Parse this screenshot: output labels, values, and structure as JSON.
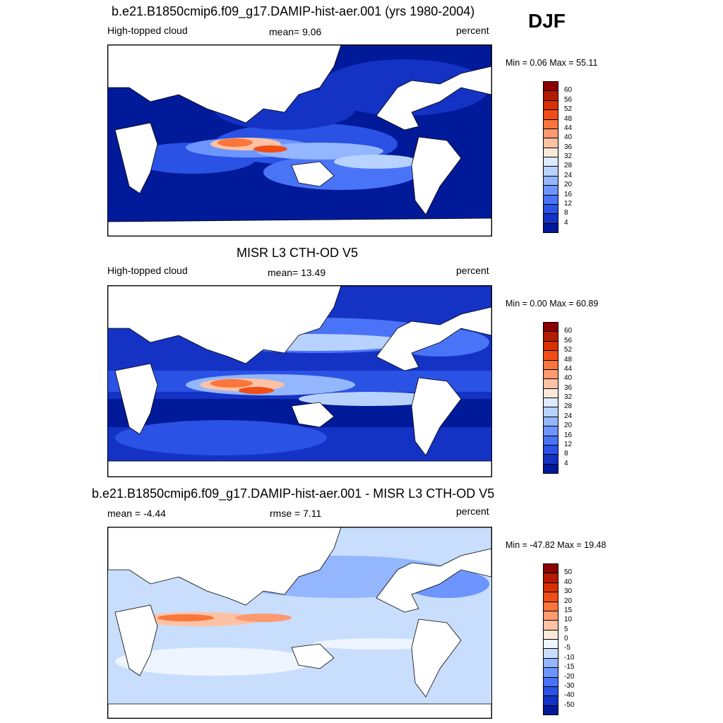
{
  "season": "DJF",
  "panels": [
    {
      "title": "b.e21.B1850cmip6.f09_g17.DAMIP-hist-aer.001 (yrs 1980-2004)",
      "left_label": "High-topped cloud",
      "center_label": "mean=   9.06",
      "right_label": "percent",
      "minmax": "Min =   0.06 Max =  55.11",
      "colorbar": {
        "labels": [
          "60",
          "56",
          "52",
          "48",
          "44",
          "40",
          "36",
          "32",
          "28",
          "24",
          "20",
          "16",
          "12",
          "8",
          "4"
        ],
        "colors": [
          "#8b0000",
          "#b31a00",
          "#d83000",
          "#f04e16",
          "#f9763c",
          "#fd9a70",
          "#fdc2a4",
          "#fde9d8",
          "#dceaff",
          "#b8d2ff",
          "#93b6ff",
          "#6d95ff",
          "#4a74f7",
          "#2a52e4",
          "#1432c4",
          "#001a99"
        ]
      }
    },
    {
      "title": "MISR L3 CTH-OD V5",
      "left_label": "High-topped cloud",
      "center_label": "mean=  13.49",
      "right_label": "percent",
      "minmax": "Min =   0.00 Max =  60.89",
      "colorbar": {
        "labels": [
          "60",
          "56",
          "52",
          "48",
          "44",
          "40",
          "36",
          "32",
          "28",
          "24",
          "20",
          "16",
          "12",
          "8",
          "4"
        ],
        "colors": [
          "#8b0000",
          "#b31a00",
          "#d83000",
          "#f04e16",
          "#f9763c",
          "#fd9a70",
          "#fdc2a4",
          "#fde9d8",
          "#dceaff",
          "#b8d2ff",
          "#93b6ff",
          "#6d95ff",
          "#4a74f7",
          "#2a52e4",
          "#1432c4",
          "#001a99"
        ]
      }
    },
    {
      "title": "b.e21.B1850cmip6.f09_g17.DAMIP-hist-aer.001 - MISR L3 CTH-OD V5",
      "left_label": "mean =  -4.44",
      "center_label": "rmse =   7.11",
      "right_label": "percent",
      "minmax": "Min = -47.82 Max =  19.48",
      "colorbar": {
        "labels": [
          "50",
          "40",
          "30",
          "20",
          "15",
          "10",
          "5",
          "0",
          "-5",
          "-10",
          "-15",
          "-20",
          "-30",
          "-40",
          "-50"
        ],
        "colors": [
          "#8b0000",
          "#b31a00",
          "#d83000",
          "#f04e16",
          "#f9763c",
          "#fd9a70",
          "#fdc2a4",
          "#fde9d8",
          "#eef5ff",
          "#c8defc",
          "#93b6ff",
          "#6d95ff",
          "#4a74f7",
          "#2a52e4",
          "#1432c4",
          "#001a99"
        ]
      }
    }
  ]
}
